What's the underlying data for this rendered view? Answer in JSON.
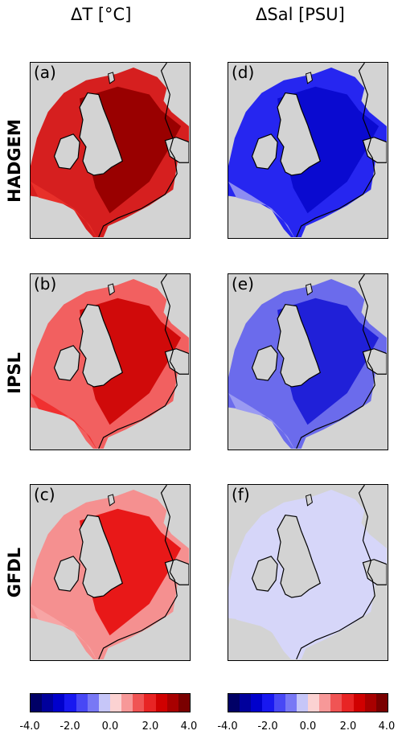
{
  "columns": [
    {
      "title": "ΔT [°C]"
    },
    {
      "title": "ΔSal [PSU]"
    }
  ],
  "rows": [
    {
      "label": "HADGEM"
    },
    {
      "label": "IPSL"
    },
    {
      "label": "GFDL"
    }
  ],
  "panels": [
    {
      "letter": "(a)",
      "sea_outer": "#d61f1f",
      "sea_inner": "#990000",
      "shelf": "#e8302a"
    },
    {
      "letter": "(d)",
      "sea_outer": "#2626f0",
      "sea_inner": "#0a0ad0",
      "shelf": "#8c8cf2"
    },
    {
      "letter": "(b)",
      "sea_outer": "#f26060",
      "sea_inner": "#d00a0a",
      "shelf": "#f03030"
    },
    {
      "letter": "(e)",
      "sea_outer": "#6b6bec",
      "sea_inner": "#2020d8",
      "shelf": "#9a9af2"
    },
    {
      "letter": "(c)",
      "sea_outer": "#f59090",
      "sea_inner": "#e81818",
      "shelf": "#f7a5a5"
    },
    {
      "letter": "(f)",
      "sea_outer": "#d6d6f9",
      "sea_inner": "#d6d6f9",
      "shelf": "#d6d6f9"
    }
  ],
  "colorbar": {
    "ticks": [
      "-4.0",
      "-2.0",
      "0.0",
      "2.0",
      "4.0"
    ],
    "colors": [
      "#000066",
      "#00009c",
      "#0000cc",
      "#1818f0",
      "#4848f5",
      "#7878f5",
      "#c6c6f8",
      "#fbd2d2",
      "#f79898",
      "#f05454",
      "#e82424",
      "#d00000",
      "#a80000",
      "#7a0000"
    ]
  }
}
